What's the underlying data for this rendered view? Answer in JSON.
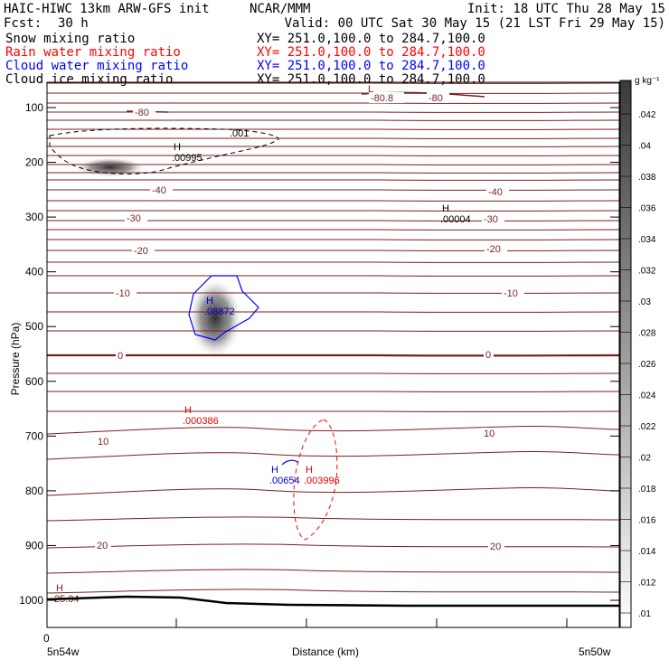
{
  "header": {
    "model_title": "HAIC-HIWC 13km ARW-GFS init",
    "org": "NCAR/MMM",
    "init": "Init: 18 UTC Thu 28 May 15",
    "fcst_label": "Fcst:",
    "fcst_value": "30 h",
    "valid": "Valid: 00 UTC Sat 30 May 15 (21 LST Fri 29 May 15)"
  },
  "fields": [
    {
      "name": "Snow mixing ratio",
      "xy": "XY= 251.0,100.0 to 284.7,100.0",
      "color": "#000000"
    },
    {
      "name": "Rain water mixing ratio",
      "xy": "XY= 251.0,100.0 to 284.7,100.0",
      "color": "#ff0000"
    },
    {
      "name": "Cloud water mixing ratio",
      "xy": "XY= 251.0,100.0 to 284.7,100.0",
      "color": "#0000ff"
    },
    {
      "name": "Cloud ice mixing ratio",
      "xy": "XY= 251.0,100.0 to 284.7,100.0",
      "color": "#000000"
    }
  ],
  "colors": {
    "isotherm": "#7a1f1f",
    "rain": "#dd0000",
    "cloud_water": "#0000cc",
    "snow_ice": "#000000",
    "terrain": "#000000"
  },
  "chart_data": {
    "type": "cross-section",
    "ylabel": "Pressure (hPa)",
    "xlabel": "Distance (km)",
    "y_axis_inverted": true,
    "ylim": [
      1050,
      40
    ],
    "y_ticks": [
      100,
      200,
      300,
      400,
      500,
      600,
      700,
      800,
      900,
      1000
    ],
    "x_ticks": [
      "0"
    ],
    "x_endpoint_labels": {
      "left": "5n54w",
      "right": "5n50w"
    },
    "colorbar": {
      "unit": "g kg⁻¹",
      "ticks": [
        ".042",
        ".04",
        ".038",
        ".036",
        ".034",
        ".032",
        ".03",
        ".028",
        ".026",
        ".024",
        ".022",
        ".02",
        ".018",
        ".016",
        ".014",
        ".012",
        ".01"
      ]
    },
    "temperature_contour_labels": [
      "-80.8",
      "-80",
      "-80",
      "-40",
      "-40",
      "-30",
      "-30",
      "-20",
      "-20",
      "-10",
      "-10",
      "0",
      "0",
      "10",
      "10",
      "20",
      "20"
    ],
    "maxima": [
      {
        "field": "cloud ice",
        "label": "H",
        "value": ".00995",
        "pressure": 175
      },
      {
        "field": "cloud ice",
        "label": ".001",
        "pressure": 152
      },
      {
        "field": "cloud ice",
        "label": "H",
        "value": ".00004",
        "pressure": 308
      },
      {
        "field": "cloud water",
        "label": "H",
        "value": ".08872",
        "pressure": 470
      },
      {
        "field": "rain water",
        "label": "H",
        "value": ".000386",
        "pressure": 666
      },
      {
        "field": "cloud water",
        "label": "H",
        "value": ".00654",
        "pressure": 784
      },
      {
        "field": "rain water",
        "label": "H",
        "value": ".003996",
        "pressure": 784
      },
      {
        "field": "temperature",
        "label": "H",
        "value": "25.04",
        "pressure": 1004
      },
      {
        "field": "temperature",
        "label": "L",
        "pressure": 73
      }
    ]
  }
}
